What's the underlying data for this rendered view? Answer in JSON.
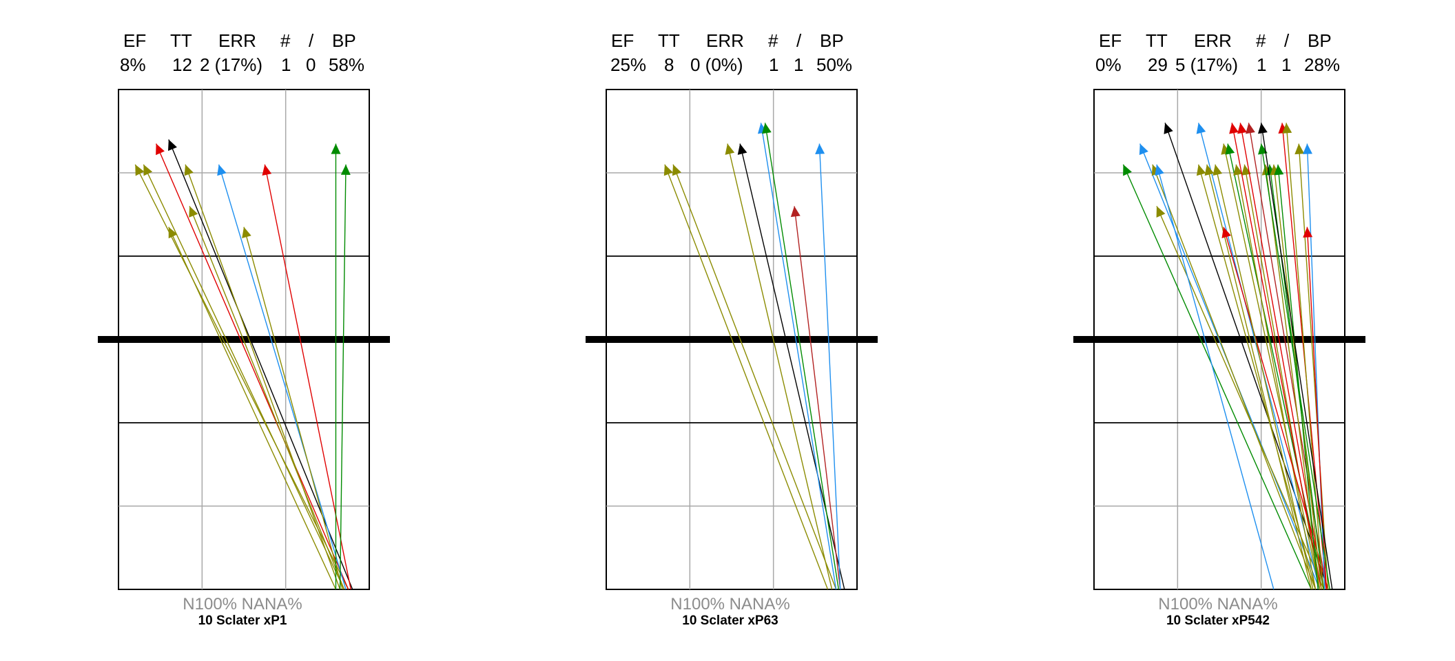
{
  "header_labels": [
    "EF",
    "TT",
    "ERR",
    "#",
    "/",
    "BP"
  ],
  "panels": [
    {
      "stats": [
        "8%",
        "12",
        "2 (17%)",
        "1",
        "0",
        "58%"
      ],
      "footer_line1": "N100%  NANA%",
      "footer_line2": "10 Sclater  xP1"
    },
    {
      "stats": [
        "25%",
        "8",
        "0 (0%)",
        "1",
        "1",
        "50%"
      ],
      "footer_line1": "N100%  NANA%",
      "footer_line2": "10 Sclater  xP63"
    },
    {
      "stats": [
        "0%",
        "29",
        "5 (17%)",
        "1",
        "1",
        "28%"
      ],
      "footer_line1": "N100%  NANA%",
      "footer_line2": "10 Sclater  xP542"
    }
  ],
  "colors": {
    "olive": "#8B8B00",
    "red": "#E00000",
    "black": "#000000",
    "blue": "#1E8FEF",
    "green": "#008B00",
    "darkred": "#B22222"
  },
  "chart_data": [
    {
      "type": "scatter",
      "title": "",
      "xlim": [
        0,
        3
      ],
      "ylim": [
        0,
        6
      ],
      "midline_y": 3,
      "series": [
        {
          "x0": 2.75,
          "y0": 0,
          "x1": 0.2,
          "y1": 5.1,
          "color": "olive"
        },
        {
          "x0": 2.7,
          "y0": 0,
          "x1": 0.3,
          "y1": 5.1,
          "color": "olive"
        },
        {
          "x0": 2.75,
          "y0": 0,
          "x1": 0.45,
          "y1": 5.35,
          "color": "red"
        },
        {
          "x0": 2.8,
          "y0": 0,
          "x1": 0.6,
          "y1": 5.4,
          "color": "black"
        },
        {
          "x0": 2.65,
          "y0": 0,
          "x1": 0.8,
          "y1": 5.1,
          "color": "olive"
        },
        {
          "x0": 2.7,
          "y0": 0,
          "x1": 0.85,
          "y1": 4.6,
          "color": "olive"
        },
        {
          "x0": 2.6,
          "y0": 0,
          "x1": 0.6,
          "y1": 4.35,
          "color": "olive"
        },
        {
          "x0": 2.72,
          "y0": 0,
          "x1": 1.2,
          "y1": 5.1,
          "color": "blue"
        },
        {
          "x0": 2.68,
          "y0": 0,
          "x1": 1.5,
          "y1": 4.35,
          "color": "olive"
        },
        {
          "x0": 2.78,
          "y0": 0,
          "x1": 1.75,
          "y1": 5.1,
          "color": "red"
        },
        {
          "x0": 2.6,
          "y0": 0,
          "x1": 2.6,
          "y1": 5.35,
          "color": "green"
        },
        {
          "x0": 2.65,
          "y0": 0,
          "x1": 2.72,
          "y1": 5.1,
          "color": "green"
        }
      ]
    },
    {
      "type": "scatter",
      "title": "",
      "xlim": [
        0,
        3
      ],
      "ylim": [
        0,
        6
      ],
      "midline_y": 3,
      "series": [
        {
          "x0": 2.65,
          "y0": 0,
          "x1": 0.7,
          "y1": 5.1,
          "color": "olive"
        },
        {
          "x0": 2.75,
          "y0": 0,
          "x1": 0.8,
          "y1": 5.1,
          "color": "olive"
        },
        {
          "x0": 2.7,
          "y0": 0,
          "x1": 1.45,
          "y1": 5.35,
          "color": "olive"
        },
        {
          "x0": 2.85,
          "y0": 0,
          "x1": 1.6,
          "y1": 5.35,
          "color": "black"
        },
        {
          "x0": 2.75,
          "y0": 0,
          "x1": 1.85,
          "y1": 5.6,
          "color": "blue"
        },
        {
          "x0": 2.8,
          "y0": 0,
          "x1": 2.25,
          "y1": 4.6,
          "color": "darkred"
        },
        {
          "x0": 2.8,
          "y0": 0,
          "x1": 2.55,
          "y1": 5.35,
          "color": "blue"
        },
        {
          "x0": 2.78,
          "y0": 0,
          "x1": 1.9,
          "y1": 5.6,
          "color": "green"
        }
      ]
    },
    {
      "type": "scatter",
      "title": "",
      "xlim": [
        0,
        3
      ],
      "ylim": [
        0,
        6
      ],
      "midline_y": 3,
      "series": [
        {
          "x0": 2.6,
          "y0": 0,
          "x1": 0.35,
          "y1": 5.1,
          "color": "green"
        },
        {
          "x0": 2.7,
          "y0": 0,
          "x1": 0.55,
          "y1": 5.35,
          "color": "blue"
        },
        {
          "x0": 2.65,
          "y0": 0,
          "x1": 0.7,
          "y1": 5.1,
          "color": "olive"
        },
        {
          "x0": 2.75,
          "y0": 0,
          "x1": 0.75,
          "y1": 4.6,
          "color": "olive"
        },
        {
          "x0": 2.8,
          "y0": 0,
          "x1": 0.85,
          "y1": 5.6,
          "color": "black"
        },
        {
          "x0": 2.15,
          "y0": 0,
          "x1": 0.75,
          "y1": 5.1,
          "color": "blue"
        },
        {
          "x0": 2.7,
          "y0": 0,
          "x1": 1.25,
          "y1": 5.6,
          "color": "blue"
        },
        {
          "x0": 2.65,
          "y0": 0,
          "x1": 1.25,
          "y1": 5.1,
          "color": "olive"
        },
        {
          "x0": 2.6,
          "y0": 0,
          "x1": 1.35,
          "y1": 5.1,
          "color": "olive"
        },
        {
          "x0": 2.7,
          "y0": 0,
          "x1": 1.55,
          "y1": 5.35,
          "color": "olive"
        },
        {
          "x0": 2.75,
          "y0": 0,
          "x1": 1.6,
          "y1": 5.35,
          "color": "green"
        },
        {
          "x0": 2.65,
          "y0": 0,
          "x1": 1.7,
          "y1": 5.1,
          "color": "olive"
        },
        {
          "x0": 2.7,
          "y0": 0,
          "x1": 1.8,
          "y1": 5.1,
          "color": "olive"
        },
        {
          "x0": 2.8,
          "y0": 0,
          "x1": 1.55,
          "y1": 4.35,
          "color": "red"
        },
        {
          "x0": 2.72,
          "y0": 0,
          "x1": 1.65,
          "y1": 5.6,
          "color": "red"
        },
        {
          "x0": 2.75,
          "y0": 0,
          "x1": 1.75,
          "y1": 5.6,
          "color": "red"
        },
        {
          "x0": 2.78,
          "y0": 0,
          "x1": 1.85,
          "y1": 5.6,
          "color": "darkred"
        },
        {
          "x0": 2.7,
          "y0": 0,
          "x1": 2.05,
          "y1": 5.1,
          "color": "olive"
        },
        {
          "x0": 2.75,
          "y0": 0,
          "x1": 2.1,
          "y1": 5.1,
          "color": "green"
        },
        {
          "x0": 2.72,
          "y0": 0,
          "x1": 2.15,
          "y1": 5.1,
          "color": "olive"
        },
        {
          "x0": 2.78,
          "y0": 0,
          "x1": 2.25,
          "y1": 5.6,
          "color": "red"
        },
        {
          "x0": 2.74,
          "y0": 0,
          "x1": 2.3,
          "y1": 5.6,
          "color": "olive"
        },
        {
          "x0": 2.8,
          "y0": 0,
          "x1": 2.45,
          "y1": 5.35,
          "color": "olive"
        },
        {
          "x0": 2.76,
          "y0": 0,
          "x1": 2.55,
          "y1": 5.35,
          "color": "blue"
        },
        {
          "x0": 2.78,
          "y0": 0,
          "x1": 2.55,
          "y1": 4.35,
          "color": "red"
        },
        {
          "x0": 2.68,
          "y0": 0,
          "x1": 2.2,
          "y1": 5.1,
          "color": "green"
        },
        {
          "x0": 2.82,
          "y0": 0,
          "x1": 2.0,
          "y1": 5.35,
          "color": "green"
        },
        {
          "x0": 2.62,
          "y0": 0,
          "x1": 1.45,
          "y1": 5.1,
          "color": "olive"
        },
        {
          "x0": 2.85,
          "y0": 0,
          "x1": 2.0,
          "y1": 5.6,
          "color": "black"
        }
      ]
    }
  ]
}
